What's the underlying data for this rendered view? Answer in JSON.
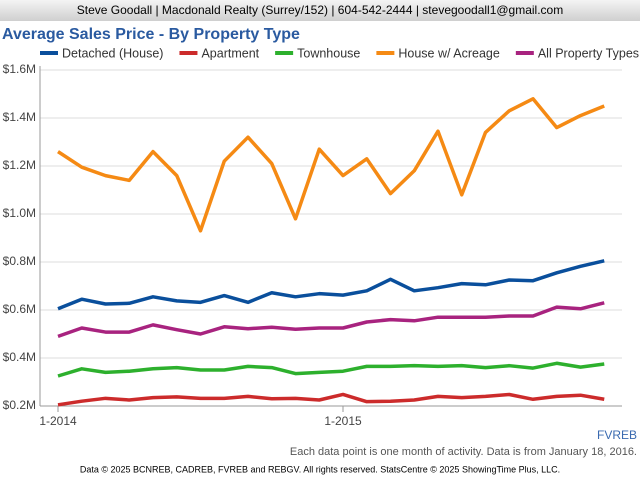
{
  "header": "Steve Goodall | Macdonald Realty (Surrey/152) | 604-542-2444 | stevegoodall1@gmail.com",
  "chart_data": {
    "type": "line",
    "title": "Average Sales Price - By Property Type",
    "categories": [
      "1-2014",
      null,
      null,
      null,
      null,
      null,
      null,
      null,
      null,
      null,
      null,
      null,
      "1-2015",
      null,
      null,
      null,
      null,
      null,
      null,
      null,
      null,
      null,
      null,
      null
    ],
    "series": [
      {
        "name": "Detached (House)",
        "color": "#0a4f9c",
        "values": [
          605000,
          645000,
          625000,
          628000,
          655000,
          638000,
          632000,
          660000,
          632000,
          672000,
          655000,
          668000,
          662000,
          680000,
          728000,
          680000,
          693000,
          710000,
          705000,
          725000,
          722000,
          755000,
          782000,
          805000
        ]
      },
      {
        "name": "Apartment",
        "color": "#cc2b2b",
        "values": [
          205000,
          220000,
          232000,
          225000,
          235000,
          238000,
          232000,
          232000,
          240000,
          230000,
          232000,
          225000,
          248000,
          218000,
          220000,
          225000,
          240000,
          235000,
          240000,
          248000,
          228000,
          240000,
          245000,
          228000
        ]
      },
      {
        "name": "Townhouse",
        "color": "#2db02d",
        "values": [
          325000,
          355000,
          340000,
          345000,
          355000,
          360000,
          350000,
          350000,
          365000,
          360000,
          335000,
          340000,
          345000,
          365000,
          365000,
          368000,
          365000,
          368000,
          360000,
          368000,
          358000,
          378000,
          362000,
          375000
        ]
      },
      {
        "name": "House w/ Acreage",
        "color": "#f58a14",
        "values": [
          1260000,
          1195000,
          1160000,
          1140000,
          1260000,
          1160000,
          930000,
          1220000,
          1320000,
          1210000,
          980000,
          1270000,
          1160000,
          1230000,
          1085000,
          1180000,
          1345000,
          1080000,
          1340000,
          1430000,
          1480000,
          1360000,
          1410000,
          1450000
        ]
      },
      {
        "name": "All Property Types",
        "color": "#a8237f",
        "values": [
          490000,
          525000,
          508000,
          508000,
          538000,
          518000,
          500000,
          530000,
          522000,
          528000,
          520000,
          525000,
          525000,
          550000,
          560000,
          555000,
          570000,
          570000,
          570000,
          575000,
          575000,
          612000,
          605000,
          630000
        ]
      }
    ],
    "ylim": [
      200000,
      1600000
    ],
    "yticks": [
      {
        "value": 200000,
        "label": "$0.2M"
      },
      {
        "value": 400000,
        "label": "$0.4M"
      },
      {
        "value": 600000,
        "label": "$0.6M"
      },
      {
        "value": 800000,
        "label": "$0.8M"
      },
      {
        "value": 1000000,
        "label": "$1.0M"
      },
      {
        "value": 1200000,
        "label": "$1.2M"
      },
      {
        "value": 1400000,
        "label": "$1.4M"
      },
      {
        "value": 1600000,
        "label": "$1.6M"
      }
    ],
    "grid": true
  },
  "board": "FVREB",
  "note": "Each data point is one month of activity. Data is from January 18, 2016.",
  "copyright": "Data © 2025 BCNREB, CADREB, FVREB and REBGV. All rights reserved. StatsCentre © 2025 ShowingTime Plus, LLC."
}
